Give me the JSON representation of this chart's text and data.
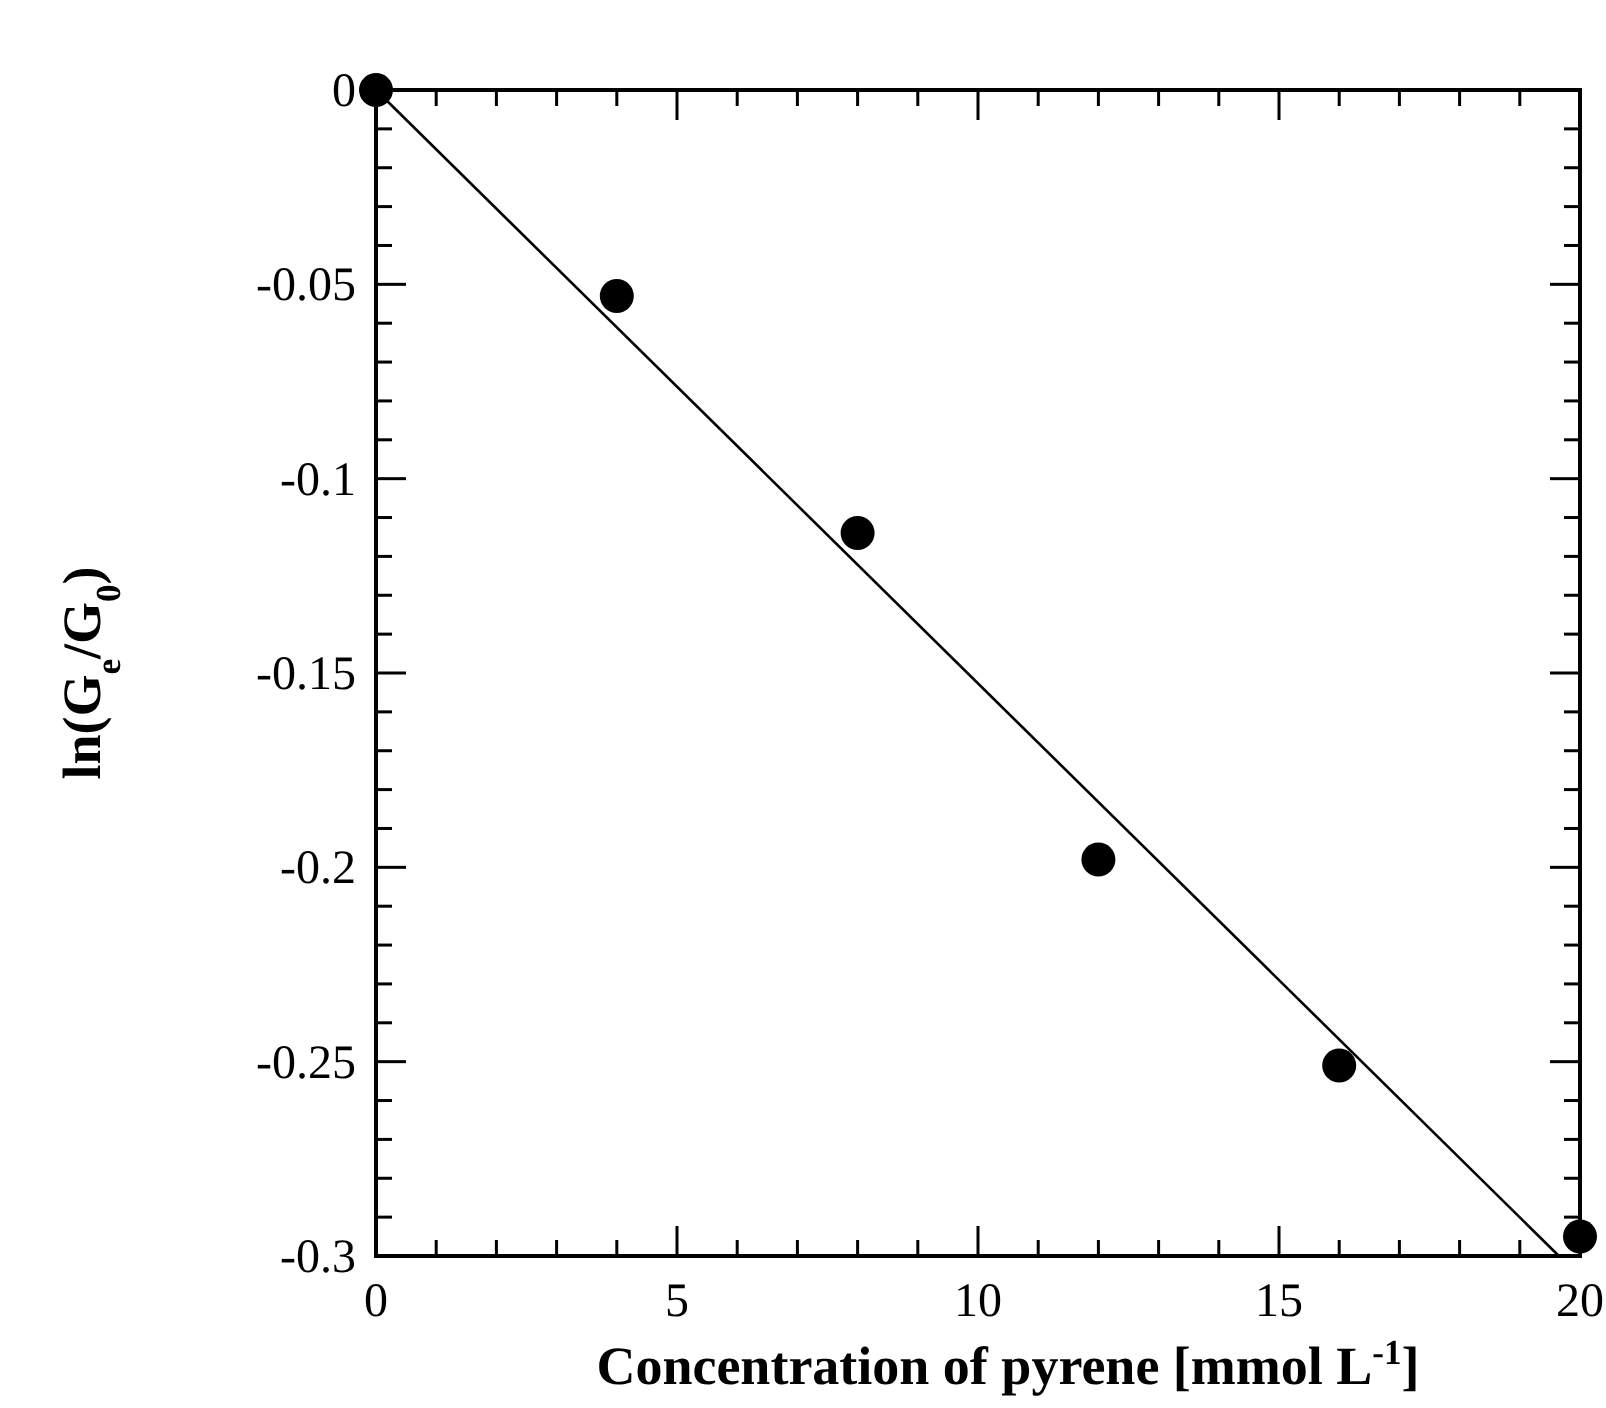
{
  "chart_data": {
    "type": "scatter",
    "xlabel": "Concentration of pyrene [mmol L$^{-1}$]",
    "ylabel": "ln(G$_{e}$/G$_{0}$)",
    "x": [
      0,
      4,
      8,
      12,
      16,
      20
    ],
    "marker": "circle",
    "series": [
      {
        "type": "scatter",
        "color": "#000000",
        "values": [
          0,
          -0.053,
          -0.114,
          -0.198,
          -0.251,
          -0.295
        ]
      },
      {
        "type": "line",
        "marker": "none",
        "color": "#000000",
        "x": [
          0,
          19.65
        ],
        "values": [
          0,
          -0.3
        ]
      }
    ],
    "xlim": [
      0,
      20
    ],
    "ylim": [
      -0.3,
      0
    ],
    "xticks": [
      0,
      {
        "value": 1,
        "label": null
      },
      {
        "value": 2,
        "label": null
      },
      {
        "value": 3,
        "label": null
      },
      {
        "value": 4,
        "label": null
      },
      5,
      {
        "value": 6,
        "label": null
      },
      {
        "value": 7,
        "label": null
      },
      {
        "value": 8,
        "label": null
      },
      {
        "value": 9,
        "label": null
      },
      10,
      {
        "value": 11,
        "label": null
      },
      {
        "value": 12,
        "label": null
      },
      {
        "value": 13,
        "label": null
      },
      {
        "value": 14,
        "label": null
      },
      15,
      {
        "value": 16,
        "label": null
      },
      {
        "value": 17,
        "label": null
      },
      {
        "value": 18,
        "label": null
      },
      {
        "value": 19,
        "label": null
      },
      20
    ],
    "yticks": [
      -0.3,
      {
        "value": -0.29,
        "label": null
      },
      {
        "value": -0.28,
        "label": null
      },
      {
        "value": -0.27,
        "label": null
      },
      {
        "value": -0.26,
        "label": null
      },
      -0.25,
      {
        "value": -0.24,
        "label": null
      },
      {
        "value": -0.23,
        "label": null
      },
      {
        "value": -0.22,
        "label": null
      },
      {
        "value": -0.21,
        "label": null
      },
      -0.2,
      {
        "value": -0.19,
        "label": null
      },
      {
        "value": -0.18,
        "label": null
      },
      {
        "value": -0.17,
        "label": null
      },
      {
        "value": -0.16,
        "label": null
      },
      -0.15,
      {
        "value": -0.14,
        "label": null
      },
      {
        "value": -0.13,
        "label": null
      },
      {
        "value": -0.12,
        "label": null
      },
      {
        "value": -0.11,
        "label": null
      },
      -0.1,
      {
        "value": -0.09,
        "label": null
      },
      {
        "value": -0.08,
        "label": null
      },
      {
        "value": -0.07,
        "label": null
      },
      {
        "value": -0.06,
        "label": null
      },
      -0.05,
      {
        "value": -0.04,
        "label": null
      },
      {
        "value": -0.03,
        "label": null
      },
      {
        "value": -0.02,
        "label": null
      },
      {
        "value": -0.01,
        "label": null
      },
      0
    ],
    "grid": false
  }
}
